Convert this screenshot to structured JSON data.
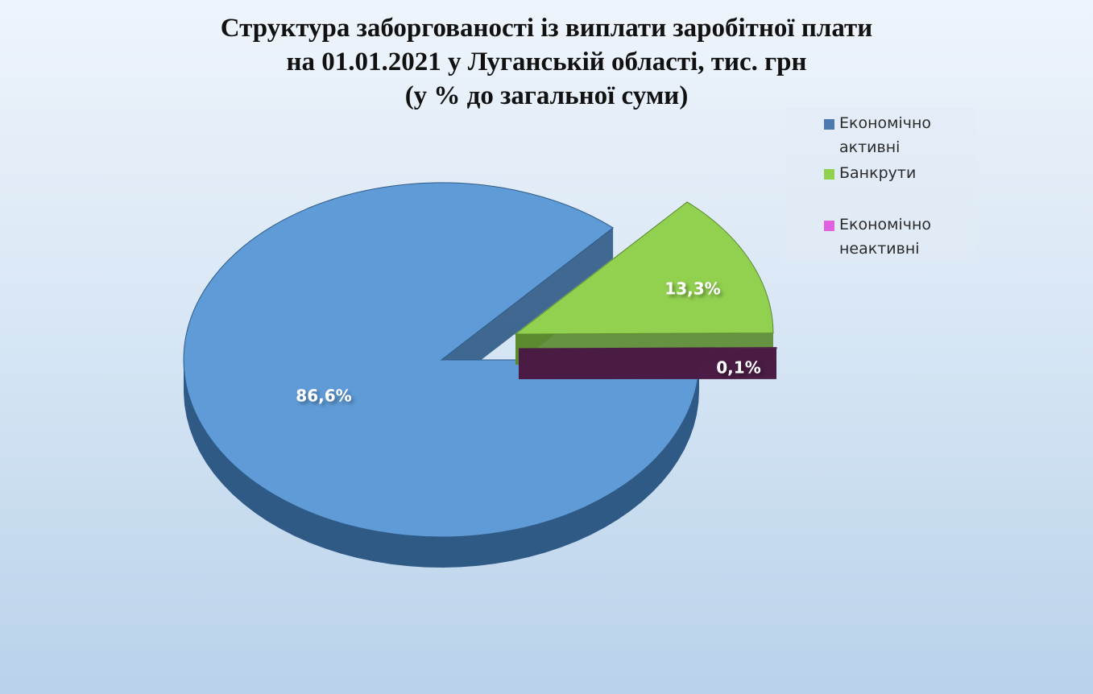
{
  "chart_data": {
    "type": "pie",
    "title_lines": [
      "Структура заборгованості із виплати заробітної плати",
      "на 01.01.2021 у Луганській області, тис. грн",
      "(у % до загальної суми)"
    ],
    "categories": [
      "Економічно активні",
      "Банкрути",
      "Економічно неактивні"
    ],
    "values": [
      86.6,
      13.3,
      0.1
    ],
    "data_labels": [
      "86,6%",
      "13,3%",
      "0,1%"
    ],
    "legend_position": "top-right",
    "legend": [
      {
        "lines": [
          "Економічно",
          "активні"
        ]
      },
      {
        "lines": [
          "Банкрути"
        ]
      },
      {
        "lines": [
          "Економічно",
          "неактивні"
        ]
      }
    ],
    "colors": {
      "top": [
        "#5f9bd6",
        "#92d050",
        "#7a2f6e"
      ],
      "side": [
        "#2f5a86",
        "#5a8a2e",
        "#4a1b44"
      ],
      "legend_swatch": [
        "#4a7ab0",
        "#92d050",
        "#e060e0"
      ]
    }
  }
}
